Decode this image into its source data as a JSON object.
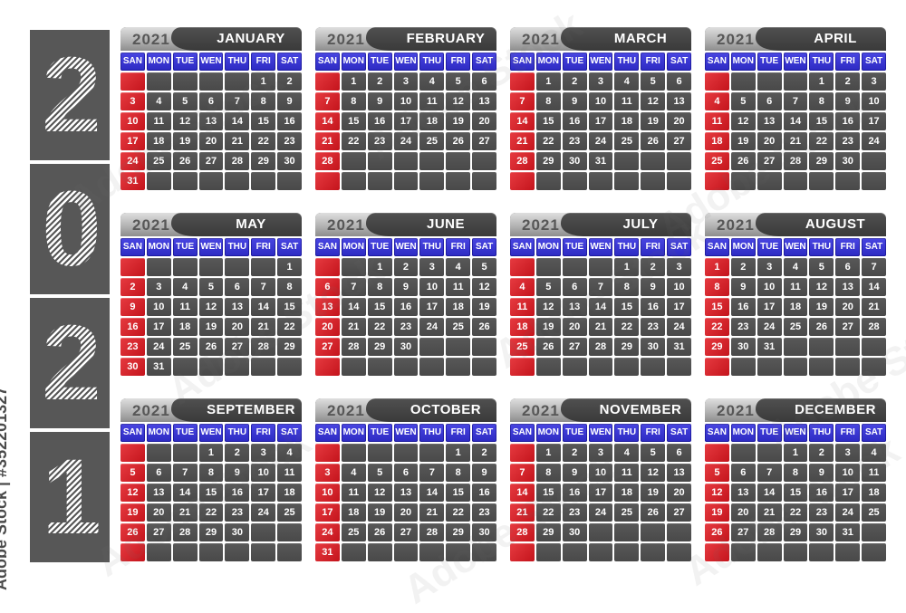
{
  "watermark": {
    "vertical_text": "Adobe Stock | #352201327",
    "diagonal_text": "Adobe Stock"
  },
  "year_panel": {
    "digits": [
      "2",
      "0",
      "2",
      "1"
    ]
  },
  "calendar": {
    "year_label": "2021",
    "day_headers": [
      "SAN",
      "MON",
      "TUE",
      "WEN",
      "THU",
      "FRI",
      "SAT"
    ],
    "colors": {
      "sunday_red": "#cc1b22",
      "weekday_blue": "#3431ce",
      "cell_gray": "#4f4f4f",
      "header_dark": "#404040",
      "tab_light": "#c9c9c9",
      "background": "#ffffff"
    },
    "months": [
      {
        "name": "JANUARY",
        "weeks": [
          [
            "",
            "",
            "",
            "",
            "",
            "1",
            "2"
          ],
          [
            "3",
            "4",
            "5",
            "6",
            "7",
            "8",
            "9"
          ],
          [
            "10",
            "11",
            "12",
            "13",
            "14",
            "15",
            "16"
          ],
          [
            "17",
            "18",
            "19",
            "20",
            "21",
            "22",
            "23"
          ],
          [
            "24",
            "25",
            "26",
            "27",
            "28",
            "29",
            "30"
          ],
          [
            "31",
            "",
            "",
            "",
            "",
            "",
            ""
          ]
        ]
      },
      {
        "name": "FEBRUARY",
        "weeks": [
          [
            "",
            "1",
            "2",
            "3",
            "4",
            "5",
            "6"
          ],
          [
            "7",
            "8",
            "9",
            "10",
            "11",
            "12",
            "13"
          ],
          [
            "14",
            "15",
            "16",
            "17",
            "18",
            "19",
            "20"
          ],
          [
            "21",
            "22",
            "23",
            "24",
            "25",
            "26",
            "27"
          ],
          [
            "28",
            "",
            "",
            "",
            "",
            "",
            ""
          ],
          [
            "",
            "",
            "",
            "",
            "",
            "",
            ""
          ]
        ]
      },
      {
        "name": "MARCH",
        "weeks": [
          [
            "",
            "1",
            "2",
            "3",
            "4",
            "5",
            "6"
          ],
          [
            "7",
            "8",
            "9",
            "10",
            "11",
            "12",
            "13"
          ],
          [
            "14",
            "15",
            "16",
            "17",
            "18",
            "19",
            "20"
          ],
          [
            "21",
            "22",
            "23",
            "24",
            "25",
            "26",
            "27"
          ],
          [
            "28",
            "29",
            "30",
            "31",
            "",
            "",
            ""
          ],
          [
            "",
            "",
            "",
            "",
            "",
            "",
            ""
          ]
        ]
      },
      {
        "name": "APRIL",
        "weeks": [
          [
            "",
            "",
            "",
            "",
            "1",
            "2",
            "3"
          ],
          [
            "4",
            "5",
            "6",
            "7",
            "8",
            "9",
            "10"
          ],
          [
            "11",
            "12",
            "13",
            "14",
            "15",
            "16",
            "17"
          ],
          [
            "18",
            "19",
            "20",
            "21",
            "22",
            "23",
            "24"
          ],
          [
            "25",
            "26",
            "27",
            "28",
            "29",
            "30",
            ""
          ],
          [
            "",
            "",
            "",
            "",
            "",
            "",
            ""
          ]
        ]
      },
      {
        "name": "MAY",
        "weeks": [
          [
            "",
            "",
            "",
            "",
            "",
            "",
            "1"
          ],
          [
            "2",
            "3",
            "4",
            "5",
            "6",
            "7",
            "8"
          ],
          [
            "9",
            "10",
            "11",
            "12",
            "13",
            "14",
            "15"
          ],
          [
            "16",
            "17",
            "18",
            "19",
            "20",
            "21",
            "22"
          ],
          [
            "23",
            "24",
            "25",
            "26",
            "27",
            "28",
            "29"
          ],
          [
            "30",
            "31",
            "",
            "",
            "",
            "",
            ""
          ]
        ]
      },
      {
        "name": "JUNE",
        "weeks": [
          [
            "",
            "",
            "1",
            "2",
            "3",
            "4",
            "5"
          ],
          [
            "6",
            "7",
            "8",
            "9",
            "10",
            "11",
            "12"
          ],
          [
            "13",
            "14",
            "15",
            "16",
            "17",
            "18",
            "19"
          ],
          [
            "20",
            "21",
            "22",
            "23",
            "24",
            "25",
            "26"
          ],
          [
            "27",
            "28",
            "29",
            "30",
            "",
            "",
            ""
          ],
          [
            "",
            "",
            "",
            "",
            "",
            "",
            ""
          ]
        ]
      },
      {
        "name": "JULY",
        "weeks": [
          [
            "",
            "",
            "",
            "",
            "1",
            "2",
            "3"
          ],
          [
            "4",
            "5",
            "6",
            "7",
            "8",
            "9",
            "10"
          ],
          [
            "11",
            "12",
            "13",
            "14",
            "15",
            "16",
            "17"
          ],
          [
            "18",
            "19",
            "20",
            "21",
            "22",
            "23",
            "24"
          ],
          [
            "25",
            "26",
            "27",
            "28",
            "29",
            "30",
            "31"
          ],
          [
            "",
            "",
            "",
            "",
            "",
            "",
            ""
          ]
        ]
      },
      {
        "name": "AUGUST",
        "weeks": [
          [
            "1",
            "2",
            "3",
            "4",
            "5",
            "6",
            "7"
          ],
          [
            "8",
            "9",
            "10",
            "11",
            "12",
            "13",
            "14"
          ],
          [
            "15",
            "16",
            "17",
            "18",
            "19",
            "20",
            "21"
          ],
          [
            "22",
            "23",
            "24",
            "25",
            "26",
            "27",
            "28"
          ],
          [
            "29",
            "30",
            "31",
            "",
            "",
            "",
            ""
          ],
          [
            "",
            "",
            "",
            "",
            "",
            "",
            ""
          ]
        ]
      },
      {
        "name": "SEPTEMBER",
        "weeks": [
          [
            "",
            "",
            "",
            "1",
            "2",
            "3",
            "4"
          ],
          [
            "5",
            "6",
            "7",
            "8",
            "9",
            "10",
            "11"
          ],
          [
            "12",
            "13",
            "14",
            "15",
            "16",
            "17",
            "18"
          ],
          [
            "19",
            "20",
            "21",
            "22",
            "23",
            "24",
            "25"
          ],
          [
            "26",
            "27",
            "28",
            "29",
            "30",
            "",
            ""
          ],
          [
            "",
            "",
            "",
            "",
            "",
            "",
            ""
          ]
        ]
      },
      {
        "name": "OCTOBER",
        "weeks": [
          [
            "",
            "",
            "",
            "",
            "",
            "1",
            "2"
          ],
          [
            "3",
            "4",
            "5",
            "6",
            "7",
            "8",
            "9"
          ],
          [
            "10",
            "11",
            "12",
            "13",
            "14",
            "15",
            "16"
          ],
          [
            "17",
            "18",
            "19",
            "20",
            "21",
            "22",
            "23"
          ],
          [
            "24",
            "25",
            "26",
            "27",
            "28",
            "29",
            "30"
          ],
          [
            "31",
            "",
            "",
            "",
            "",
            "",
            ""
          ]
        ]
      },
      {
        "name": "NOVEMBER",
        "weeks": [
          [
            "",
            "1",
            "2",
            "3",
            "4",
            "5",
            "6"
          ],
          [
            "7",
            "8",
            "9",
            "10",
            "11",
            "12",
            "13"
          ],
          [
            "14",
            "15",
            "16",
            "17",
            "18",
            "19",
            "20"
          ],
          [
            "21",
            "22",
            "23",
            "24",
            "25",
            "26",
            "27"
          ],
          [
            "28",
            "29",
            "30",
            "",
            "",
            "",
            ""
          ],
          [
            "",
            "",
            "",
            "",
            "",
            "",
            ""
          ]
        ]
      },
      {
        "name": "DECEMBER",
        "weeks": [
          [
            "",
            "",
            "",
            "1",
            "2",
            "3",
            "4"
          ],
          [
            "5",
            "6",
            "7",
            "8",
            "9",
            "10",
            "11"
          ],
          [
            "12",
            "13",
            "14",
            "15",
            "16",
            "17",
            "18"
          ],
          [
            "19",
            "20",
            "21",
            "22",
            "23",
            "24",
            "25"
          ],
          [
            "26",
            "27",
            "28",
            "29",
            "30",
            "31",
            ""
          ],
          [
            "",
            "",
            "",
            "",
            "",
            "",
            ""
          ]
        ]
      }
    ]
  }
}
